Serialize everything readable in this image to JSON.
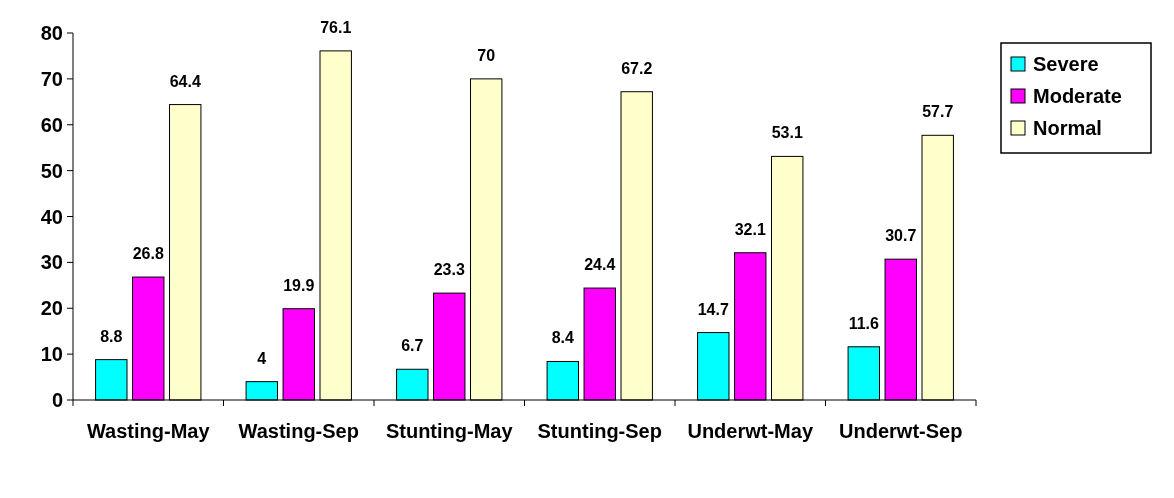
{
  "chart_data": {
    "type": "bar",
    "categories": [
      "Wasting-May",
      "Wasting-Sep",
      "Stunting-May",
      "Stunting-Sep",
      "Underwt-May",
      "Underwt-Sep"
    ],
    "series": [
      {
        "name": "Severe",
        "color": "#00ffff",
        "values": [
          8.8,
          4,
          6.7,
          8.4,
          14.7,
          11.6
        ]
      },
      {
        "name": "Moderate",
        "color": "#ff00ff",
        "values": [
          26.8,
          19.9,
          23.3,
          24.4,
          32.1,
          30.7
        ]
      },
      {
        "name": "Normal",
        "color": "#ffffcc",
        "values": [
          64.4,
          76.1,
          70,
          67.2,
          53.1,
          57.7
        ]
      }
    ],
    "ylim": [
      0,
      80
    ],
    "yticks": [
      0,
      10,
      20,
      30,
      40,
      50,
      60,
      70,
      80
    ],
    "data_labels": true,
    "legend": "right",
    "grid": false
  }
}
